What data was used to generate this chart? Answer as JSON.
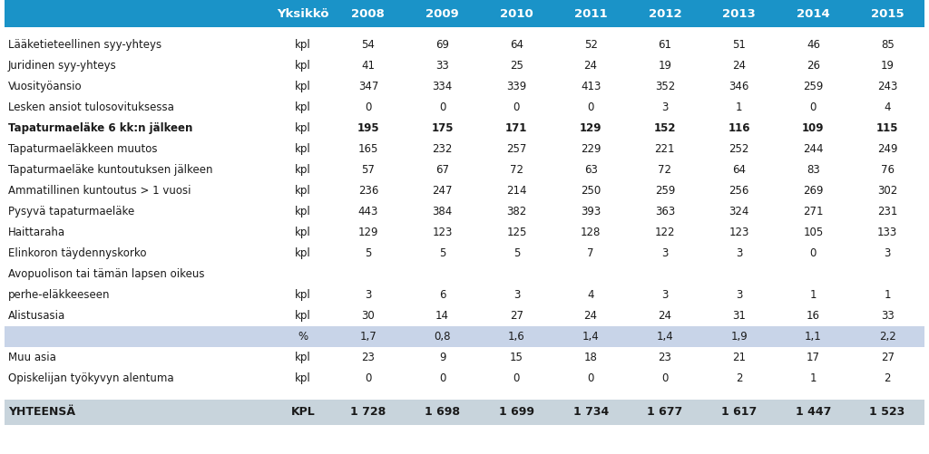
{
  "header_bg": "#1a93c8",
  "header_text_color": "#ffffff",
  "header_font_size": 9.5,
  "body_font_size": 8.5,
  "footer_bg": "#c8d4dc",
  "pct_row_bg": "#c8d4e8",
  "columns": [
    "",
    "Yksikkö",
    "2008",
    "2009",
    "2010",
    "2011",
    "2012",
    "2013",
    "2014",
    "2015"
  ],
  "rows": [
    {
      "label": "Lääketieteellinen syy-yhteys",
      "unit": "kpl",
      "values": [
        "54",
        "69",
        "64",
        "52",
        "61",
        "51",
        "46",
        "85"
      ],
      "bold": false,
      "bg": null
    },
    {
      "label": "Juridinen syy-yhteys",
      "unit": "kpl",
      "values": [
        "41",
        "33",
        "25",
        "24",
        "19",
        "24",
        "26",
        "19"
      ],
      "bold": false,
      "bg": null
    },
    {
      "label": "Vuosityöansio",
      "unit": "kpl",
      "values": [
        "347",
        "334",
        "339",
        "413",
        "352",
        "346",
        "259",
        "243"
      ],
      "bold": false,
      "bg": null
    },
    {
      "label": "Lesken ansiot tulosovituksessa",
      "unit": "kpl",
      "values": [
        "0",
        "0",
        "0",
        "0",
        "3",
        "1",
        "0",
        "4"
      ],
      "bold": false,
      "bg": null
    },
    {
      "label": "Tapaturmaeläke 6 kk:n jälkeen",
      "unit": "kpl",
      "values": [
        "195",
        "175",
        "171",
        "129",
        "152",
        "116",
        "109",
        "115"
      ],
      "bold": true,
      "bg": null
    },
    {
      "label": "Tapaturmaeläkkeen muutos",
      "unit": "kpl",
      "values": [
        "165",
        "232",
        "257",
        "229",
        "221",
        "252",
        "244",
        "249"
      ],
      "bold": false,
      "bg": null
    },
    {
      "label": "Tapaturmaeläke kuntoutuksen jälkeen",
      "unit": "kpl",
      "values": [
        "57",
        "67",
        "72",
        "63",
        "72",
        "64",
        "83",
        "76"
      ],
      "bold": false,
      "bg": null
    },
    {
      "label": "Ammatillinen kuntoutus > 1 vuosi",
      "unit": "kpl",
      "values": [
        "236",
        "247",
        "214",
        "250",
        "259",
        "256",
        "269",
        "302"
      ],
      "bold": false,
      "bg": null
    },
    {
      "label": "Pysyvä tapaturmaeläke",
      "unit": "kpl",
      "values": [
        "443",
        "384",
        "382",
        "393",
        "363",
        "324",
        "271",
        "231"
      ],
      "bold": false,
      "bg": null
    },
    {
      "label": "Haittaraha",
      "unit": "kpl",
      "values": [
        "129",
        "123",
        "125",
        "128",
        "122",
        "123",
        "105",
        "133"
      ],
      "bold": false,
      "bg": null
    },
    {
      "label": "Elinkoron täydennyskorko",
      "unit": "kpl",
      "values": [
        "5",
        "5",
        "5",
        "7",
        "3",
        "3",
        "0",
        "3"
      ],
      "bold": false,
      "bg": null
    },
    {
      "label": "Avopuolison tai tämän lapsen oikeus",
      "unit": "",
      "values": [
        "",
        "",
        "",
        "",
        "",
        "",
        "",
        ""
      ],
      "bold": false,
      "bg": null
    },
    {
      "label": "perhe-eläkkeeseen",
      "unit": "kpl",
      "values": [
        "3",
        "6",
        "3",
        "4",
        "3",
        "3",
        "1",
        "1"
      ],
      "bold": false,
      "bg": null
    },
    {
      "label": "Alistusasia",
      "unit": "kpl",
      "values": [
        "30",
        "14",
        "27",
        "24",
        "24",
        "31",
        "16",
        "33"
      ],
      "bold": false,
      "bg": null
    },
    {
      "label": "",
      "unit": "%",
      "values": [
        "1,7",
        "0,8",
        "1,6",
        "1,4",
        "1,4",
        "1,9",
        "1,1",
        "2,2"
      ],
      "bold": false,
      "bg": "#c8d4e8"
    },
    {
      "label": "Muu asia",
      "unit": "kpl",
      "values": [
        "23",
        "9",
        "15",
        "18",
        "23",
        "21",
        "17",
        "27"
      ],
      "bold": false,
      "bg": null
    },
    {
      "label": "Opiskelijan työkyvyn alentuma",
      "unit": "kpl",
      "values": [
        "0",
        "0",
        "0",
        "0",
        "0",
        "2",
        "1",
        "2"
      ],
      "bold": false,
      "bg": null
    }
  ],
  "footer": {
    "label": "YHTEENSÄ",
    "unit": "KPL",
    "values": [
      "1 728",
      "1 698",
      "1 699",
      "1 734",
      "1 677",
      "1 617",
      "1 447",
      "1 523"
    ],
    "bold": true,
    "bg": "#c8d4dc"
  }
}
